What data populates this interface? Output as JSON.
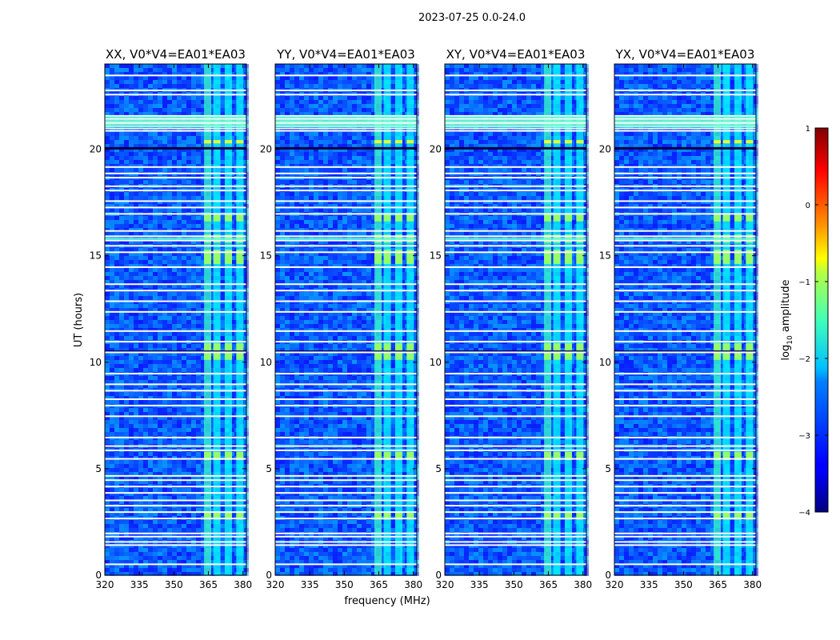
{
  "figure": {
    "suptitle": "2023-07-25 0.0-24.0",
    "ylabel": "UT (hours)",
    "xlabel": "frequency (MHz)"
  },
  "chart_data": {
    "type": "heatmap",
    "title": "2023-07-25 0.0-24.0",
    "xlabel": "frequency (MHz)",
    "ylabel": "UT (hours)",
    "xlim": [
      320,
      381.5
    ],
    "ylim": [
      0,
      24
    ],
    "xticks": [
      320,
      335,
      350,
      365,
      380
    ],
    "xtick_labels": [
      "320",
      "335",
      "350",
      "365",
      "380"
    ],
    "yticks": [
      0,
      5,
      10,
      15,
      20
    ],
    "ytick_labels": [
      "0",
      "5",
      "10",
      "15",
      "20"
    ],
    "panels": [
      {
        "title": "XX, V0*V4=EA01*EA03"
      },
      {
        "title": "YY, V0*V4=EA01*EA03"
      },
      {
        "title": "XY, V0*V4=EA01*EA03"
      },
      {
        "title": "YX, V0*V4=EA01*EA03"
      }
    ],
    "colorbar": {
      "label": "log10 amplitude",
      "label_base": "log",
      "label_sub": "10",
      "label_rest": " amplitude",
      "range": [
        -4,
        1
      ],
      "ticks": [
        1,
        0,
        -1,
        -2,
        -3,
        -4
      ],
      "tick_labels": [
        "1",
        "0",
        "−1",
        "−2",
        "−3",
        "−4"
      ]
    },
    "rfi_channels_mhz": [
      364.5,
      368.5,
      373.5,
      378.5
    ],
    "blank_rows_ut": [
      0.55,
      1.45,
      1.6,
      1.85,
      2.0,
      2.7,
      3.0,
      3.3,
      3.55,
      3.9,
      4.2,
      4.5,
      4.7,
      5.5,
      5.9,
      6.1,
      6.5,
      7.5,
      8.0,
      8.3,
      8.7,
      9.0,
      9.5,
      10.5,
      11.0,
      11.5,
      12.4,
      12.9,
      13.4,
      13.7,
      14.5,
      15.2,
      15.5,
      15.75,
      15.95,
      16.2,
      17.0,
      17.3,
      17.6,
      18.1,
      18.3,
      18.7,
      18.9,
      19.2,
      20.9,
      21.1,
      21.3,
      21.6,
      22.6,
      22.8,
      23.5
    ],
    "bright_rows_ut": [
      2.8,
      5.6,
      10.3,
      10.7,
      14.8,
      15.1,
      15.8,
      16.8,
      20.35
    ]
  }
}
